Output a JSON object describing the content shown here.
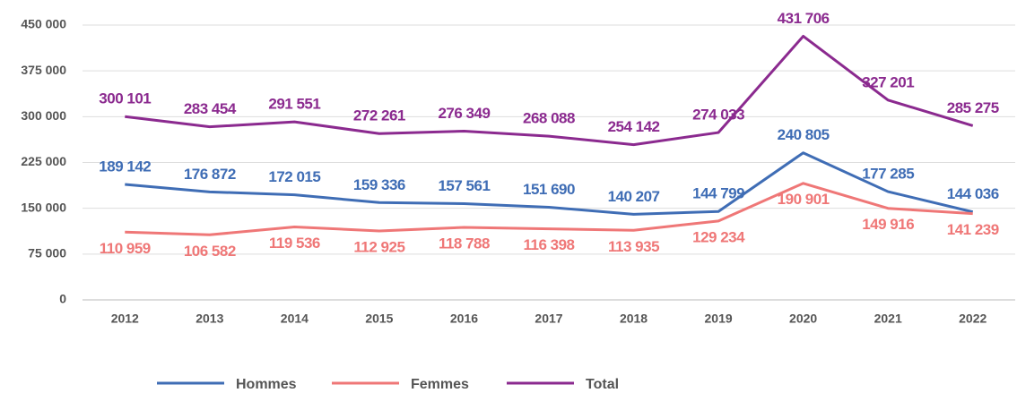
{
  "chart_data": {
    "type": "line",
    "categories": [
      "2012",
      "2013",
      "2014",
      "2015",
      "2016",
      "2017",
      "2018",
      "2019",
      "2020",
      "2021",
      "2022"
    ],
    "series": [
      {
        "name": "Hommes",
        "color": "#3f6db5",
        "values": [
          189142,
          176872,
          172015,
          159336,
          157561,
          151690,
          140207,
          144799,
          240805,
          177285,
          144036
        ],
        "value_labels": [
          "189 142",
          "176 872",
          "172 015",
          "159 336",
          "157 561",
          "151 690",
          "140 207",
          "144 799",
          "240 805",
          "177 285",
          "144 036"
        ]
      },
      {
        "name": "Femmes",
        "color": "#ef7777",
        "values": [
          110959,
          106582,
          119536,
          112925,
          118788,
          116398,
          113935,
          129234,
          190901,
          149916,
          141239
        ],
        "value_labels": [
          "110 959",
          "106 582",
          "119 536",
          "112 925",
          "118 788",
          "116 398",
          "113 935",
          "129 234",
          "190 901",
          "149 916",
          "141 239"
        ]
      },
      {
        "name": "Total",
        "color": "#8b2a8f",
        "values": [
          300101,
          283454,
          291551,
          272261,
          276349,
          268088,
          254142,
          274033,
          431706,
          327201,
          285275
        ],
        "value_labels": [
          "300 101",
          "283 454",
          "291 551",
          "272 261",
          "276 349",
          "268 088",
          "254 142",
          "274 033",
          "431 706",
          "327 201",
          "285 275"
        ]
      }
    ],
    "ylim": [
      0,
      450000
    ],
    "yticks": [
      0,
      {
        "value": 75000,
        "label": "75 000"
      },
      {
        "value": 150000,
        "label": "150 000"
      },
      {
        "value": 225000,
        "label": "225 000"
      },
      {
        "value": 300000,
        "label": "300 000"
      },
      {
        "value": 375000,
        "label": "375 000"
      },
      {
        "value": 450000,
        "label": "450 000"
      }
    ],
    "grid": true,
    "legend": "bottom"
  }
}
